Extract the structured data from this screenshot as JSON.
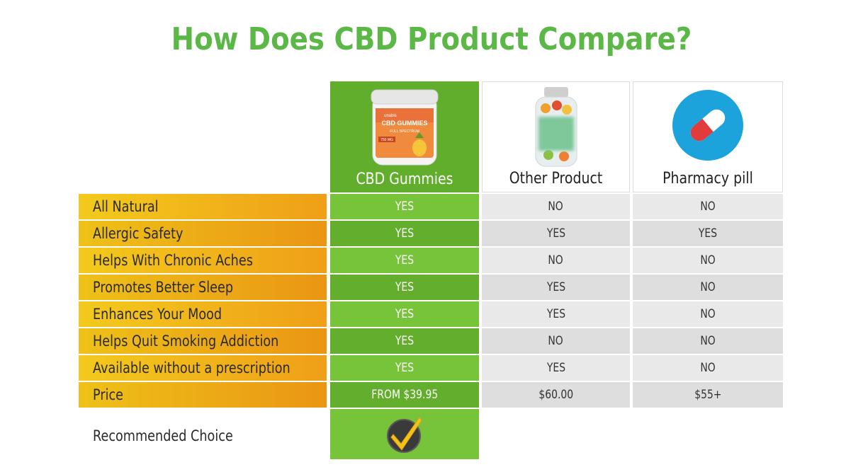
{
  "title": "How Does CBD Product Compare?",
  "columns": [
    {
      "label": "CBD Gummies",
      "image": "cbd-gummies-jar"
    },
    {
      "label": "Other Product",
      "image": "blurred-bottle"
    },
    {
      "label": "Pharmacy pill",
      "image": "pill-capsule-icon"
    }
  ],
  "rows": [
    {
      "feature": "All Natural",
      "cbd": "YES",
      "other": "NO",
      "pill": "NO"
    },
    {
      "feature": "Allergic Safety",
      "cbd": "YES",
      "other": "YES",
      "pill": "YES"
    },
    {
      "feature": "Helps With Chronic Aches",
      "cbd": "YES",
      "other": "NO",
      "pill": "NO"
    },
    {
      "feature": "Promotes Better Sleep",
      "cbd": "YES",
      "other": "YES",
      "pill": "NO"
    },
    {
      "feature": "Enhances Your Mood",
      "cbd": "YES",
      "other": "YES",
      "pill": "NO"
    },
    {
      "feature": "Helps Quit Smoking Addiction",
      "cbd": "YES",
      "other": "NO",
      "pill": "NO"
    },
    {
      "feature": "Available without a prescription",
      "cbd": "YES",
      "other": "YES",
      "pill": "NO"
    },
    {
      "feature": "Price",
      "cbd": "FROM $39.95",
      "other": "$60.00",
      "pill": "$55+"
    }
  ],
  "recommended": {
    "label": "Recommended Choice",
    "icon": "checkmark-badge-icon"
  },
  "jar_label": {
    "brand": "unabis",
    "name": "CBD GUMMIES",
    "sub": "FULL SPECTRUM",
    "dose": "750 MG"
  },
  "colors": {
    "title_green": "#5bb847",
    "cbd_green": "#61ae2d",
    "feature_yellow": "#f3ca1c",
    "feature_orange": "#ef9f18",
    "gray": "#e9e9e9"
  }
}
